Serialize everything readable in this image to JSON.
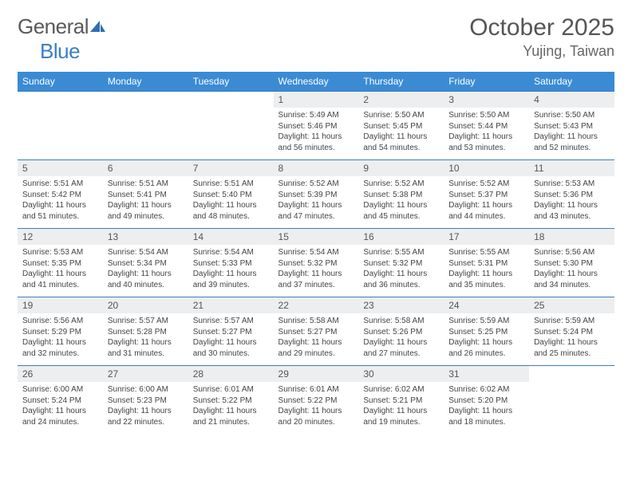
{
  "logo": {
    "part1": "General",
    "part2": "Blue"
  },
  "title": "October 2025",
  "location": "Yujing, Taiwan",
  "colors": {
    "header_bg": "#3b8bd4",
    "header_border": "#3b7fb8",
    "daynum_bg": "#eceef0",
    "text_main": "#555555",
    "text_detail": "#444444",
    "logo_gray": "#5a5a5a",
    "logo_blue": "#3b7fc4"
  },
  "day_names": [
    "Sunday",
    "Monday",
    "Tuesday",
    "Wednesday",
    "Thursday",
    "Friday",
    "Saturday"
  ],
  "weeks": [
    {
      "nums": [
        "",
        "",
        "",
        "1",
        "2",
        "3",
        "4"
      ],
      "cells": [
        null,
        null,
        null,
        {
          "sr": "5:49 AM",
          "ss": "5:46 PM",
          "dl": "11 hours and 56 minutes."
        },
        {
          "sr": "5:50 AM",
          "ss": "5:45 PM",
          "dl": "11 hours and 54 minutes."
        },
        {
          "sr": "5:50 AM",
          "ss": "5:44 PM",
          "dl": "11 hours and 53 minutes."
        },
        {
          "sr": "5:50 AM",
          "ss": "5:43 PM",
          "dl": "11 hours and 52 minutes."
        }
      ]
    },
    {
      "nums": [
        "5",
        "6",
        "7",
        "8",
        "9",
        "10",
        "11"
      ],
      "cells": [
        {
          "sr": "5:51 AM",
          "ss": "5:42 PM",
          "dl": "11 hours and 51 minutes."
        },
        {
          "sr": "5:51 AM",
          "ss": "5:41 PM",
          "dl": "11 hours and 49 minutes."
        },
        {
          "sr": "5:51 AM",
          "ss": "5:40 PM",
          "dl": "11 hours and 48 minutes."
        },
        {
          "sr": "5:52 AM",
          "ss": "5:39 PM",
          "dl": "11 hours and 47 minutes."
        },
        {
          "sr": "5:52 AM",
          "ss": "5:38 PM",
          "dl": "11 hours and 45 minutes."
        },
        {
          "sr": "5:52 AM",
          "ss": "5:37 PM",
          "dl": "11 hours and 44 minutes."
        },
        {
          "sr": "5:53 AM",
          "ss": "5:36 PM",
          "dl": "11 hours and 43 minutes."
        }
      ]
    },
    {
      "nums": [
        "12",
        "13",
        "14",
        "15",
        "16",
        "17",
        "18"
      ],
      "cells": [
        {
          "sr": "5:53 AM",
          "ss": "5:35 PM",
          "dl": "11 hours and 41 minutes."
        },
        {
          "sr": "5:54 AM",
          "ss": "5:34 PM",
          "dl": "11 hours and 40 minutes."
        },
        {
          "sr": "5:54 AM",
          "ss": "5:33 PM",
          "dl": "11 hours and 39 minutes."
        },
        {
          "sr": "5:54 AM",
          "ss": "5:32 PM",
          "dl": "11 hours and 37 minutes."
        },
        {
          "sr": "5:55 AM",
          "ss": "5:32 PM",
          "dl": "11 hours and 36 minutes."
        },
        {
          "sr": "5:55 AM",
          "ss": "5:31 PM",
          "dl": "11 hours and 35 minutes."
        },
        {
          "sr": "5:56 AM",
          "ss": "5:30 PM",
          "dl": "11 hours and 34 minutes."
        }
      ]
    },
    {
      "nums": [
        "19",
        "20",
        "21",
        "22",
        "23",
        "24",
        "25"
      ],
      "cells": [
        {
          "sr": "5:56 AM",
          "ss": "5:29 PM",
          "dl": "11 hours and 32 minutes."
        },
        {
          "sr": "5:57 AM",
          "ss": "5:28 PM",
          "dl": "11 hours and 31 minutes."
        },
        {
          "sr": "5:57 AM",
          "ss": "5:27 PM",
          "dl": "11 hours and 30 minutes."
        },
        {
          "sr": "5:58 AM",
          "ss": "5:27 PM",
          "dl": "11 hours and 29 minutes."
        },
        {
          "sr": "5:58 AM",
          "ss": "5:26 PM",
          "dl": "11 hours and 27 minutes."
        },
        {
          "sr": "5:59 AM",
          "ss": "5:25 PM",
          "dl": "11 hours and 26 minutes."
        },
        {
          "sr": "5:59 AM",
          "ss": "5:24 PM",
          "dl": "11 hours and 25 minutes."
        }
      ]
    },
    {
      "nums": [
        "26",
        "27",
        "28",
        "29",
        "30",
        "31",
        ""
      ],
      "cells": [
        {
          "sr": "6:00 AM",
          "ss": "5:24 PM",
          "dl": "11 hours and 24 minutes."
        },
        {
          "sr": "6:00 AM",
          "ss": "5:23 PM",
          "dl": "11 hours and 22 minutes."
        },
        {
          "sr": "6:01 AM",
          "ss": "5:22 PM",
          "dl": "11 hours and 21 minutes."
        },
        {
          "sr": "6:01 AM",
          "ss": "5:22 PM",
          "dl": "11 hours and 20 minutes."
        },
        {
          "sr": "6:02 AM",
          "ss": "5:21 PM",
          "dl": "11 hours and 19 minutes."
        },
        {
          "sr": "6:02 AM",
          "ss": "5:20 PM",
          "dl": "11 hours and 18 minutes."
        },
        null
      ]
    }
  ],
  "labels": {
    "sunrise": "Sunrise:",
    "sunset": "Sunset:",
    "daylight": "Daylight:"
  }
}
